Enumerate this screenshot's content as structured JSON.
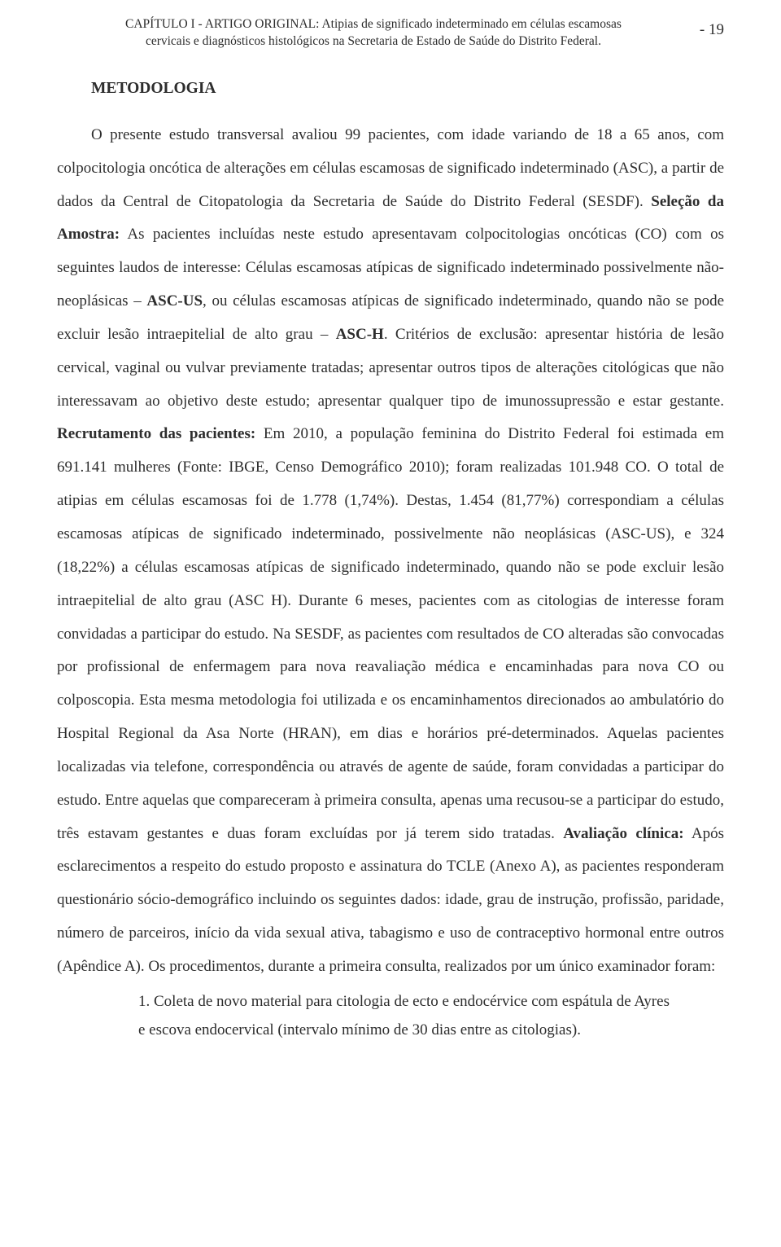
{
  "header": {
    "chapter_line1": "CAPÍTULO I - ARTIGO ORIGINAL: Atipias de significado indeterminado em células escamosas",
    "chapter_line2": "cervicais e diagnósticos histológicos na Secretaria de Estado de Saúde do Distrito Federal.",
    "page_number": "-   19"
  },
  "section": {
    "title": "METODOLOGIA"
  },
  "body": {
    "p1_a": "O presente estudo transversal avaliou 99 pacientes, com idade variando de 18 a 65 anos, com colpocitologia oncótica de alterações em células escamosas de significado indeterminado (ASC), a partir de dados da Central de Citopatologia da Secretaria de Saúde do Distrito Federal (SESDF). ",
    "p1_b_bold": "Seleção da Amostra:",
    "p1_c": " As pacientes incluídas neste estudo apresentavam colpocitologias oncóticas (CO) com os seguintes laudos de interesse: Células escamosas atípicas de significado indeterminado possivelmente não-neoplásicas – ",
    "p1_d_bold": "ASC-US",
    "p1_e": ", ou células escamosas atípicas de significado indeterminado, quando não se pode excluir lesão intraepitelial de alto grau – ",
    "p1_f_bold": "ASC-H",
    "p1_g": ". Critérios de exclusão: apresentar história de lesão cervical, vaginal ou vulvar previamente tratadas; apresentar outros tipos de alterações citológicas que não interessavam ao objetivo deste estudo; apresentar qualquer tipo de imunossupressão e estar gestante. ",
    "p1_h_bold": "Recrutamento das pacientes:",
    "p1_i": " Em 2010, a população feminina do Distrito Federal foi estimada em 691.141 mulheres (Fonte: IBGE, Censo Demográfico 2010); foram realizadas 101.948 CO. O total de atipias em células escamosas foi de 1.778 (1,74%). Destas, 1.454 (81,77%) correspondiam a células escamosas atípicas de significado indeterminado, possivelmente não neoplásicas (ASC-US), e 324 (18,22%) a células escamosas atípicas de significado indeterminado, quando não se pode excluir lesão intraepitelial de alto grau (ASC H). Durante 6 meses, pacientes com as citologias de interesse foram convidadas a participar do estudo. Na SESDF, as pacientes com resultados de CO alteradas são convocadas por profissional de enfermagem para nova reavaliação médica e encaminhadas para nova CO ou colposcopia. Esta mesma metodologia foi utilizada e os encaminhamentos direcionados ao ambulatório do Hospital Regional da Asa Norte (HRAN), em dias e horários pré-determinados. Aquelas pacientes localizadas via telefone, correspondência ou através de agente de saúde, foram convidadas a participar do estudo. Entre aquelas que compareceram à primeira consulta, apenas uma recusou-se a participar do estudo, três estavam gestantes e duas foram excluídas por já terem sido tratadas. ",
    "p1_j_bold": "Avaliação clínica:",
    "p1_k": " Após esclarecimentos a respeito do estudo proposto e assinatura do TCLE (Anexo A), as pacientes responderam questionário sócio-demográfico incluindo os seguintes dados: idade, grau de instrução, profissão, paridade, número de parceiros, início da vida sexual ativa, tabagismo e uso de contraceptivo hormonal entre outros (Apêndice A). Os procedimentos, durante a primeira consulta, realizados por um único examinador foram:"
  },
  "list": {
    "item1": "1.  Coleta de novo material para citologia de ecto e endocérvice com espátula de Ayres e escova endocervical (intervalo mínimo de 30 dias entre as citologias)."
  }
}
